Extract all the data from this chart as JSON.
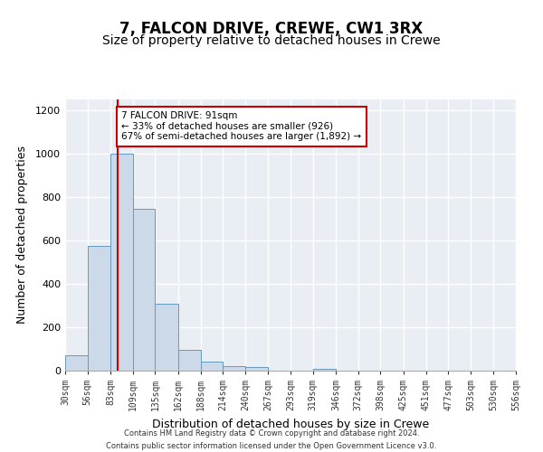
{
  "title": "7, FALCON DRIVE, CREWE, CW1 3RX",
  "subtitle": "Size of property relative to detached houses in Crewe",
  "xlabel": "Distribution of detached houses by size in Crewe",
  "ylabel": "Number of detached properties",
  "bin_edges": [
    30,
    56,
    83,
    109,
    135,
    162,
    188,
    214,
    240,
    267,
    293,
    319,
    346,
    372,
    398,
    425,
    451,
    477,
    503,
    530,
    556
  ],
  "bar_heights": [
    70,
    575,
    1000,
    745,
    310,
    95,
    40,
    20,
    15,
    0,
    0,
    10,
    0,
    0,
    0,
    0,
    0,
    0,
    0,
    0
  ],
  "bar_facecolor": "#ccd9e8",
  "bar_edgecolor": "#6699bb",
  "property_size": 91,
  "vline_color": "#cc0000",
  "annotation_title": "7 FALCON DRIVE: 91sqm",
  "annotation_line1": "← 33% of detached houses are smaller (926)",
  "annotation_line2": "67% of semi-detached houses are larger (1,892) →",
  "annotation_box_edgecolor": "#cc0000",
  "annotation_box_facecolor": "#ffffff",
  "ylim": [
    0,
    1250
  ],
  "yticks": [
    0,
    200,
    400,
    600,
    800,
    1000,
    1200
  ],
  "footer1": "Contains HM Land Registry data © Crown copyright and database right 2024.",
  "footer2": "Contains public sector information licensed under the Open Government Licence v3.0.",
  "background_color": "#ffffff",
  "plot_background_color": "#e8eef4",
  "grid_color": "#ffffff",
  "title_fontsize": 12,
  "subtitle_fontsize": 10,
  "tick_labels": [
    "30sqm",
    "56sqm",
    "83sqm",
    "109sqm",
    "135sqm",
    "162sqm",
    "188sqm",
    "214sqm",
    "240sqm",
    "267sqm",
    "293sqm",
    "319sqm",
    "346sqm",
    "372sqm",
    "398sqm",
    "425sqm",
    "451sqm",
    "477sqm",
    "503sqm",
    "530sqm",
    "556sqm"
  ]
}
